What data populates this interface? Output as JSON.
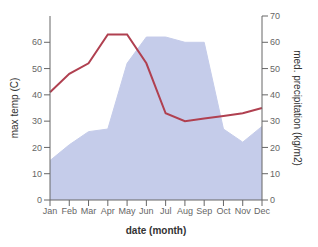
{
  "chart_data": {
    "type": "line",
    "categories": [
      "Jan",
      "Feb",
      "Mar",
      "Apr",
      "May",
      "Jun",
      "Jul",
      "Aug",
      "Sep",
      "Oct",
      "Nov",
      "Dec"
    ],
    "xlabel": "date (month)",
    "ylabel": "max temp (C)",
    "y2label": "med. precipitation (kg/m2)",
    "series": [
      {
        "type": "area",
        "axis": "y2",
        "color": "#c5ccea",
        "values": [
          15,
          21,
          26,
          27,
          52,
          62,
          62,
          60,
          60,
          27,
          22,
          28
        ]
      },
      {
        "type": "line",
        "color": "#b04050",
        "values": [
          41,
          48,
          52,
          63,
          63,
          52,
          33,
          30,
          31,
          32,
          33,
          35
        ]
      }
    ],
    "ylim": [
      0,
      70
    ],
    "yticks": [
      0,
      10,
      20,
      30,
      40,
      50,
      60
    ],
    "y2lim": [
      0,
      70
    ],
    "y2ticks": [
      0,
      10,
      20,
      30,
      40,
      50,
      60,
      70
    ],
    "grid": false
  }
}
